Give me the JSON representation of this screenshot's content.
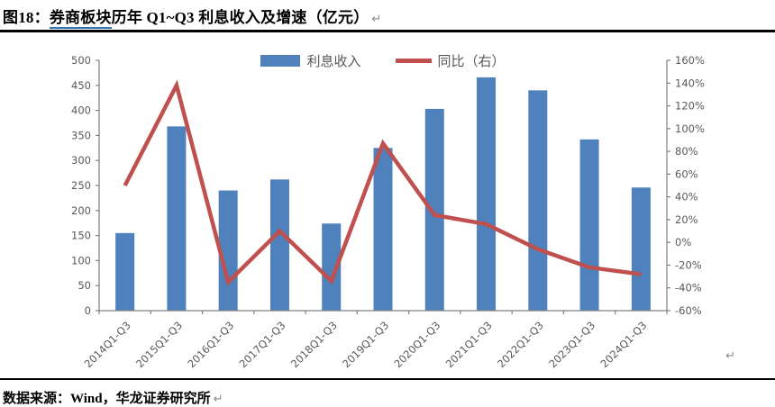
{
  "header": {
    "prefix": "图18：",
    "link_text": "券商板块",
    "rest": "历年 Q1~Q3 利息收入及增速（亿元）",
    "return_mark": "↵"
  },
  "chart_data": {
    "type": "bar",
    "title": "券商板块历年 Q1~Q3 利息收入及增速（亿元）",
    "categories": [
      "2014Q1-Q3",
      "2015Q1-Q3",
      "2016Q1-Q3",
      "2017Q1-Q3",
      "2018Q1-Q3",
      "2019Q1-Q3",
      "2020Q1-Q3",
      "2021Q1-Q3",
      "2022Q1-Q3",
      "2023Q1-Q3",
      "2024Q1-Q3"
    ],
    "series": [
      {
        "name": "利息收入",
        "type": "bar",
        "axis": "left",
        "unit": "亿元",
        "values": [
          155,
          368,
          240,
          262,
          174,
          325,
          403,
          466,
          440,
          342,
          246
        ]
      },
      {
        "name": "同比（右）",
        "type": "line",
        "axis": "right",
        "unit": "%",
        "values": [
          50,
          138,
          -35,
          10,
          -34,
          87,
          24,
          16,
          -6,
          -22,
          -28
        ]
      }
    ],
    "left_axis": {
      "min": 0,
      "max": 500,
      "step": 50,
      "suffix": ""
    },
    "right_axis": {
      "min": -60,
      "max": 160,
      "step": 20,
      "suffix": "%"
    },
    "legend_position": "top-center",
    "gridlines": false
  },
  "chart_return_mark": "↵",
  "footer": {
    "source_text": "数据来源：Wind，华龙证券研究所",
    "return_mark": "↵"
  },
  "colors": {
    "bar": "#4F81BD",
    "line": "#C0504D",
    "axis": "#808080",
    "tick_label": "#595959",
    "link_underline": "#2E75B6",
    "border": "#000000",
    "return_mark": "#8a8a8a"
  }
}
